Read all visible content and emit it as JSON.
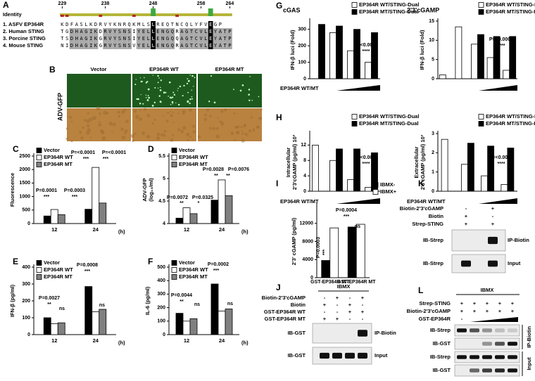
{
  "panel_labels": [
    "A",
    "B",
    "C",
    "D",
    "E",
    "F",
    "G",
    "H",
    "I",
    "J",
    "K",
    "L"
  ],
  "alignment": {
    "identity_label": "Identity",
    "positions": [
      229,
      238,
      248,
      258,
      264
    ],
    "rows": [
      {
        "name": "1. ASFV EP364R",
        "sequence": "KDFASLKDRVYKNRQKMLSLREQTNCQLYFVEGP"
      },
      {
        "name": "2. Human STING",
        "sequence": "TGDHAGIKDRVYSNSIYELLENGQRAGTCVLEYATP"
      },
      {
        "name": "3. Porcine STING",
        "sequence": "TSDHAGIKGRVYSNSIYELLENGQQAGTCVLEYATP"
      },
      {
        "name": "4. Mouse STING",
        "sequence": "NIDHAGIKGRVYSNSVYELLENGQRAGTCVLEYATP"
      }
    ]
  },
  "microscopy": {
    "columns": [
      "Vector",
      "EP364R WT",
      "EP364R MT"
    ],
    "row_label": "ADV-GFP"
  },
  "chart_data": [
    {
      "type": "bar",
      "ylabel": [
        "Fluorescence"
      ],
      "categories": [
        "12",
        "24"
      ],
      "xlabel": "(h)",
      "series": [
        {
          "name": "Vector",
          "color": "#000000",
          "values": [
            280,
            530
          ]
        },
        {
          "name": "EP364R WT",
          "color": "#ffffff",
          "values": [
            520,
            2080
          ]
        },
        {
          "name": "EP364R MT",
          "color": "#808080",
          "values": [
            330,
            760
          ]
        }
      ],
      "ylim": [
        0,
        2500
      ],
      "yticks": [
        0,
        500,
        1000,
        1500,
        2000,
        2500
      ],
      "annotations": [
        "P=0.0001",
        "***",
        "P=0.0003",
        "***",
        "P=<0.0001",
        "***",
        "P=<0.0001",
        "***"
      ]
    },
    {
      "type": "bar",
      "ylabel": [
        "ADV-GFP",
        "(log₁₀/ml)"
      ],
      "categories": [
        "12",
        "24"
      ],
      "xlabel": "(h)",
      "series": [
        {
          "name": "Vector",
          "color": "#000000",
          "values": [
            4.12,
            4.52
          ]
        },
        {
          "name": "EP364R WT",
          "color": "#ffffff",
          "values": [
            4.35,
            4.97
          ]
        },
        {
          "name": "EP364R MT",
          "color": "#808080",
          "values": [
            4.22,
            4.62
          ]
        }
      ],
      "ylim": [
        4,
        5.5
      ],
      "yticks": [
        4,
        4.5,
        5,
        5.5
      ],
      "annotations": [
        "P=0.0072",
        "**",
        "P=0.0325",
        "*",
        "P=0.0028",
        "**",
        "P=0.0076",
        "**"
      ]
    },
    {
      "type": "bar",
      "ylabel": [
        "IFN-β (pg/ml)"
      ],
      "categories": [
        "12",
        "24"
      ],
      "xlabel": "(h)",
      "series": [
        {
          "name": "Vector",
          "color": "#000000",
          "values": [
            100,
            285
          ]
        },
        {
          "name": "EP364R WT",
          "color": "#ffffff",
          "values": [
            65,
            135
          ]
        },
        {
          "name": "EP364R MT",
          "color": "#808080",
          "values": [
            70,
            150
          ]
        }
      ],
      "ylim": [
        0,
        400
      ],
      "yticks": [
        0,
        100,
        200,
        300,
        400
      ],
      "annotations": [
        "P=0.0027",
        "**",
        "ns",
        "P=0.0008",
        "***",
        "ns"
      ]
    },
    {
      "type": "bar",
      "ylabel": [
        "IL-6 (pg/ml)"
      ],
      "categories": [
        "12",
        "24"
      ],
      "xlabel": "(h)",
      "series": [
        {
          "name": "Vector",
          "color": "#000000",
          "values": [
            158,
            375
          ]
        },
        {
          "name": "EP364R WT",
          "color": "#ffffff",
          "values": [
            100,
            175
          ]
        },
        {
          "name": "EP364R MT",
          "color": "#808080",
          "values": [
            118,
            190
          ]
        }
      ],
      "ylim": [
        0,
        500
      ],
      "yticks": [
        0,
        100,
        200,
        300,
        400,
        500
      ],
      "annotations": [
        "P=0.0044",
        "**",
        "ns",
        "P=0.0002",
        "***",
        "ns"
      ]
    },
    {
      "type": "bar",
      "title": "cGAS",
      "ylabel": [
        "IFN-β luci (Fold)"
      ],
      "categories": [
        null,
        null,
        null,
        null
      ],
      "xlabel": "EP364R WT/MT",
      "series": [
        {
          "name": "EP364R WT/STING-Dual",
          "color": "#ffffff",
          "values": [
            null,
            280,
            170,
            100
          ]
        },
        {
          "name": "EP364R MT/STING-Dual",
          "color": "#000000",
          "values": [
            330,
            320,
            300,
            280
          ]
        }
      ],
      "ylim": [
        0,
        350
      ],
      "yticks": [
        0,
        100,
        200,
        300
      ],
      "annotations": [
        "P=<0.0001",
        "****"
      ]
    },
    {
      "type": "bar",
      "title": "2'3'cGAMP",
      "ylabel": [
        "IFN-β luci (Fold)"
      ],
      "categories": [
        null,
        null,
        null,
        null,
        null
      ],
      "series": [
        {
          "name": "EP364R WT/STING-Dual",
          "color": "#ffffff",
          "values": [
            1,
            13.5,
            9,
            5.5,
            2.2
          ]
        },
        {
          "name": "EP364R MT/STING-Dual",
          "color": "#000000",
          "values": [
            null,
            null,
            11.5,
            11,
            11
          ]
        }
      ],
      "ylim": [
        0,
        15
      ],
      "yticks": [
        0,
        5,
        10,
        15
      ],
      "annotations": [
        "P=<0.0001",
        "****"
      ]
    },
    {
      "type": "bar",
      "ylabel": [
        "Intracellular",
        "2'3'cGAMP (pg/ml) 10³"
      ],
      "categories": [
        null,
        null,
        null,
        null
      ],
      "xlabel": "EP364R WT/MT",
      "series": [
        {
          "name": "EP364R WT/STING-Dual",
          "color": "#ffffff",
          "values": [
            12,
            8,
            3,
            1
          ]
        },
        {
          "name": "EP364R MT/STING-Dual",
          "color": "#000000",
          "values": [
            null,
            11,
            11,
            10
          ]
        }
      ],
      "ylim": [
        0,
        15
      ],
      "yticks": [
        0,
        4,
        8,
        12
      ],
      "annotations": [
        "P=<0.0001",
        "****"
      ]
    },
    {
      "type": "bar",
      "ylabel": [
        "Extracellular",
        "2'3'cGAMP (pg/ml) 10³"
      ],
      "categories": [
        null,
        null,
        null,
        null
      ],
      "xlabel": "EP364R WT/MT",
      "series": [
        {
          "name": "EP364R WT/STING-Dual",
          "color": "#ffffff",
          "values": [
            2.7,
            1.4,
            0.8,
            0.35
          ]
        },
        {
          "name": "EP364R MT/STING-Dual",
          "color": "#000000",
          "values": [
            null,
            2.5,
            2.35,
            2.25
          ]
        }
      ],
      "ylim": [
        0,
        3
      ],
      "yticks": [
        0,
        1,
        2,
        3
      ],
      "annotations": [
        "P=<0.0001",
        "****"
      ]
    },
    {
      "type": "bar",
      "ylabel": [
        "2'3' cGAMP (pg/ml)"
      ],
      "categories": [
        "GST-EP364R WT",
        "GST-EP364R MT"
      ],
      "series": [
        {
          "name": "IBMX-",
          "color": "#000000",
          "values": [
            3800,
            11200
          ]
        },
        {
          "name": "IBMX+",
          "color": "#ffffff",
          "values": [
            11000,
            11800
          ]
        }
      ],
      "ylim": [
        0,
        16000
      ],
      "yticks": [
        0,
        4000,
        8000,
        12000
      ],
      "annotations": [
        "P=0.0003",
        "***",
        "P=0.0004",
        "***",
        "ns"
      ]
    }
  ],
  "blots": [
    {
      "title": "IBMX",
      "conditions": [
        {
          "label": "Biotin-2'3'cGAMP",
          "signs": [
            "-",
            "+",
            "-",
            "+"
          ]
        },
        {
          "label": "Biotin",
          "signs": [
            "+",
            "-",
            "+",
            "-"
          ]
        },
        {
          "label": "GST-EP364R WT",
          "signs": [
            "-",
            "-",
            "+",
            "+"
          ]
        },
        {
          "label": "GST-EP364R MT",
          "signs": [
            "+",
            "+",
            "-",
            "-"
          ]
        }
      ],
      "strips": [
        "IB-GST",
        "IB-GST"
      ],
      "side_labels": [
        "IP-Biotin",
        "Input"
      ]
    },
    {
      "conditions": [
        {
          "label": "Biotin-2'3'cGAMP",
          "signs": [
            "-",
            "+"
          ]
        },
        {
          "label": "Biotin",
          "signs": [
            "+",
            "-"
          ]
        },
        {
          "label": "Strep-STING",
          "signs": [
            "+",
            "+"
          ]
        }
      ],
      "strips": [
        "IB-Strep",
        "IB-Strep"
      ],
      "side_labels": [
        "IP-Biotin",
        "Input"
      ]
    },
    {
      "title": "IBMX",
      "conditions": [
        {
          "label": "Strep-STING",
          "signs": [
            "+",
            "+",
            "+",
            "+",
            "+"
          ]
        },
        {
          "label": "Biotin-2'3'cGAMP",
          "signs": [
            "+",
            "+",
            "+",
            "+",
            "+"
          ]
        },
        {
          "label": "GST-EP364R",
          "signs": [
            "-"
          ]
        }
      ],
      "strips": [
        "IB-Strep",
        "IB-GST",
        "IB-Strep",
        "IB-GST"
      ],
      "side_labels": [
        "IP-Biotin",
        "Input"
      ]
    }
  ]
}
